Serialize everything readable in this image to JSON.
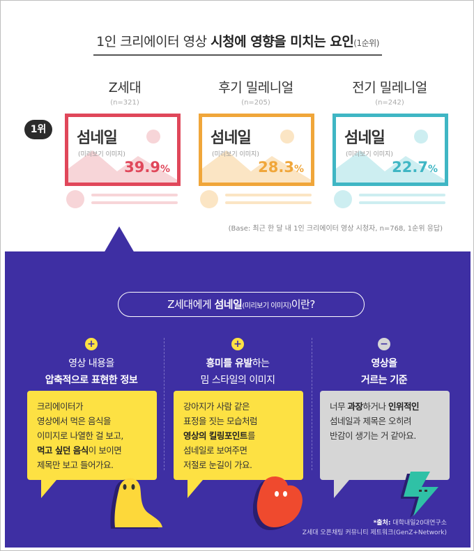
{
  "title": {
    "part1": "1인 크리에이터 영상 ",
    "part2": "시청에 영향을 미치는 요인",
    "part3": "(1순위)"
  },
  "rank_label": "1위",
  "generations": [
    {
      "name": "Z세대",
      "n": "(n=321)",
      "card_title": "섬네일",
      "card_sub": "(미리보기 이미지)",
      "pct": "39.9",
      "unit": "%",
      "color": "#e0475a",
      "light": "#f7d5d8"
    },
    {
      "name": "후기 밀레니얼",
      "n": "(n=205)",
      "card_title": "섬네일",
      "card_sub": "(미리보기 이미지)",
      "pct": "28.3",
      "unit": "%",
      "color": "#f0a63a",
      "light": "#fbe5c4"
    },
    {
      "name": "전기 밀레니얼",
      "n": "(n=242)",
      "card_title": "섬네일",
      "card_sub": "(미리보기 이미지)",
      "pct": "22.7",
      "unit": "%",
      "color": "#3fb6c4",
      "light": "#cdeef1"
    }
  ],
  "base_note": "(Base: 최근 한 달 내 1인 크리에이터 영상 시청자, n=768, 1순위 응답)",
  "pill": {
    "part1": "Z세대에게 ",
    "part2": "섬네일",
    "part3": "(미리보기 이미지)",
    "part4": "이란?"
  },
  "columns": [
    {
      "icon": "+",
      "icon_name": "plus-icon",
      "line1_a": "영상 내용을",
      "line1_b": "",
      "line2_a": "압축적으로 표현한 정보",
      "line2_b": "",
      "bubble": [
        "크리에이터가",
        "영상에서 먹은 음식을",
        "이미지로 나열한 걸 보고,"
      ],
      "bubble_bold": "먹고 싶던 음식",
      "bubble_after_bold": "이 보이면",
      "bubble_last": "제목만 보고 들어가요."
    },
    {
      "icon": "+",
      "icon_name": "plus-icon",
      "line1_a": "흥미를 유발",
      "line1_b": "하는",
      "line2_a": "밈 스타일의 이미지",
      "line2_b": "",
      "bubble": [
        "강아지가 사람 같은",
        "표정을 짓는 모습처럼"
      ],
      "bubble_bold": "영상의 킬링포인트",
      "bubble_after_bold": "를",
      "bubble_last2": "섬네일로 보여주면",
      "bubble_last": "저절로 눈길이 가요."
    },
    {
      "icon": "−",
      "icon_name": "minus-icon",
      "line1_a": "영상을",
      "line1_b": "",
      "line2_a": "거르는 기준",
      "line2_b": "",
      "bubble_pre": "너무 ",
      "bubble_bold1": "과장",
      "bubble_mid": "하거나 ",
      "bubble_bold2": "인위적인",
      "bubble_l2": "섬네일과 제목은 오히려",
      "bubble_l3": "반감이 생기는 거 같아요."
    }
  ],
  "source": {
    "label": "*출처:",
    "line1": " 대학내일20대연구소",
    "line2": "Z세대 오픈채팅 커뮤니티 제트워크(GenZ+Network)"
  },
  "colors": {
    "purple": "#3e2fa3",
    "yellow": "#fde143",
    "gray_bubble": "#d6d6d6",
    "accent_yellow": "#fde143"
  }
}
